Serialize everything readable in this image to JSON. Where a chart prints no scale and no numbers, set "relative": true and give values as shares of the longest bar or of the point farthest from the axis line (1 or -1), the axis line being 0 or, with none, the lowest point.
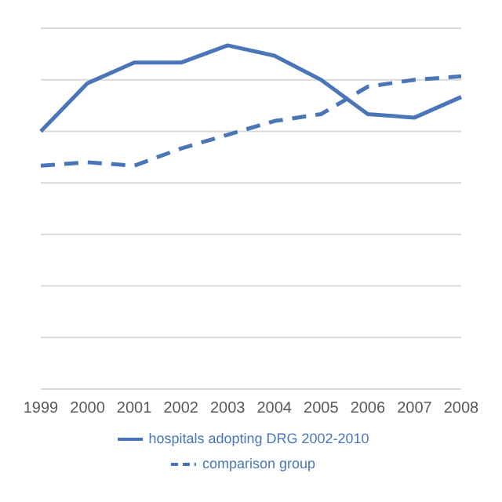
{
  "chart_data": {
    "type": "line",
    "relative": true,
    "categories": [
      "1999",
      "2000",
      "2001",
      "2002",
      "2003",
      "2004",
      "2005",
      "2006",
      "2007",
      "2008"
    ],
    "series": [
      {
        "name": "hospitals adopting DRG 2002-2010",
        "color": "#4a76b8",
        "line_style": "solid",
        "values": [
          0.75,
          0.89,
          0.95,
          0.95,
          1,
          0.97,
          0.9,
          0.8,
          0.79,
          0.85
        ]
      },
      {
        "name": "comparison group",
        "color": "#4a76b8",
        "line_style": "dashed",
        "values": [
          0.65,
          0.66,
          0.65,
          0.7,
          0.74,
          0.78,
          0.8,
          0.88,
          0.9,
          0.91
        ]
      }
    ],
    "grid": "y",
    "legend": "bottom",
    "marker": "none"
  }
}
